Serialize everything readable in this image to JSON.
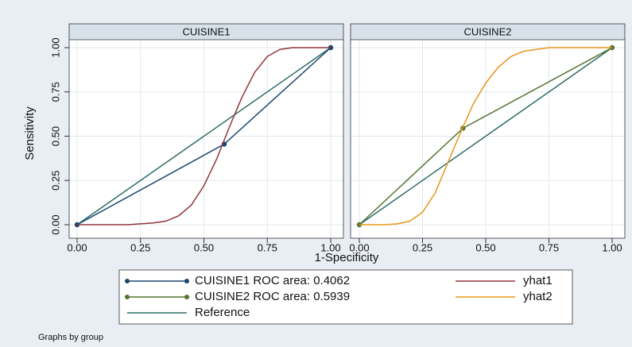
{
  "chart_data": [
    {
      "type": "line",
      "title": "CUISINE1",
      "xlim": [
        0,
        1
      ],
      "ylim": [
        0,
        1
      ],
      "xticks": [
        {
          "value": 0,
          "label": "0.00"
        },
        {
          "value": 0.25,
          "label": "0.25"
        },
        {
          "value": 0.5,
          "label": "0.50"
        },
        {
          "value": 0.75,
          "label": "0.75"
        },
        {
          "value": 1,
          "label": "1.00"
        }
      ],
      "yticks": [
        {
          "value": 0,
          "label": "0.00"
        },
        {
          "value": 0.25,
          "label": "0.25"
        },
        {
          "value": 0.5,
          "label": "0.50"
        },
        {
          "value": 0.75,
          "label": "0.75"
        },
        {
          "value": 1,
          "label": "1.00"
        }
      ],
      "grid": true,
      "series": [
        {
          "name": "CUISINE1 ROC area: 0.4062",
          "color": "#1a476f",
          "marker": true,
          "x": [
            0,
            0.58,
            1
          ],
          "values": [
            0,
            0.455,
            1
          ]
        },
        {
          "name": "yhat1",
          "color": "#90353b",
          "marker": false,
          "x": [
            0,
            0.1,
            0.2,
            0.25,
            0.3,
            0.35,
            0.4,
            0.45,
            0.5,
            0.55,
            0.6,
            0.65,
            0.7,
            0.75,
            0.8,
            0.85,
            0.9,
            1
          ],
          "values": [
            0,
            0,
            0,
            0.005,
            0.01,
            0.02,
            0.05,
            0.11,
            0.22,
            0.37,
            0.55,
            0.72,
            0.86,
            0.95,
            0.99,
            1,
            1,
            1
          ]
        },
        {
          "name": "Reference",
          "color": "#2d6d66",
          "marker": false,
          "x": [
            0,
            1
          ],
          "values": [
            0,
            1
          ]
        }
      ]
    },
    {
      "type": "line",
      "title": "CUISINE2",
      "xlim": [
        0,
        1
      ],
      "ylim": [
        0,
        1
      ],
      "xticks": [
        {
          "value": 0,
          "label": "0.00"
        },
        {
          "value": 0.25,
          "label": "0.25"
        },
        {
          "value": 0.5,
          "label": "0.50"
        },
        {
          "value": 0.75,
          "label": "0.75"
        },
        {
          "value": 1,
          "label": "1.00"
        }
      ],
      "grid": true,
      "series": [
        {
          "name": "CUISINE2 ROC area: 0.5939",
          "color": "#55752f",
          "marker": true,
          "x": [
            0,
            0.41,
            1
          ],
          "values": [
            0,
            0.545,
            1
          ]
        },
        {
          "name": "yhat2",
          "color": "#e8961c",
          "marker": false,
          "x": [
            0,
            0.1,
            0.15,
            0.2,
            0.25,
            0.3,
            0.35,
            0.4,
            0.45,
            0.5,
            0.55,
            0.6,
            0.65,
            0.7,
            0.75,
            0.8,
            0.9,
            1
          ],
          "values": [
            0,
            0,
            0.005,
            0.02,
            0.07,
            0.18,
            0.35,
            0.52,
            0.68,
            0.8,
            0.89,
            0.95,
            0.98,
            0.99,
            1,
            1,
            1,
            1
          ]
        },
        {
          "name": "Reference",
          "color": "#2d6d66",
          "marker": false,
          "x": [
            0,
            1
          ],
          "values": [
            0,
            1
          ]
        }
      ]
    }
  ],
  "xlabel": "1-Specificity",
  "ylabel": "Sensitivity",
  "note": "Graphs by group"
}
